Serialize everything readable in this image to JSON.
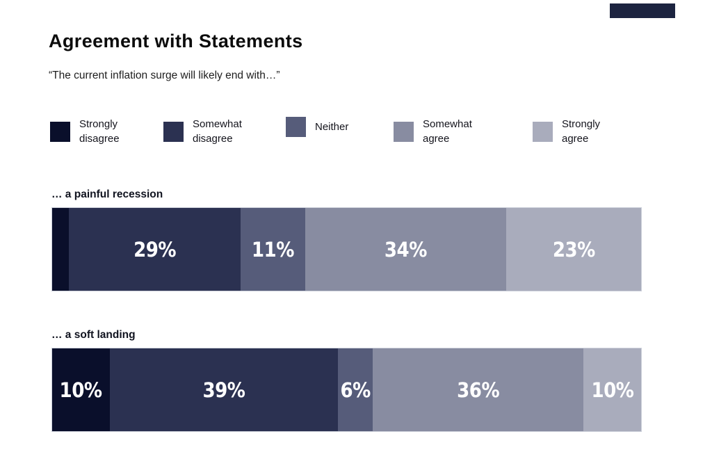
{
  "header": {
    "title": "Agreement with Statements",
    "subtitle": "“The current inflation surge will likely end with…”"
  },
  "decor": {
    "corner_block_color": "#1d2440"
  },
  "legend": [
    {
      "label": "Strongly\ndisagree",
      "color": "#0a0f2b"
    },
    {
      "label": "Somewhat\ndisagree",
      "color": "#2b3151"
    },
    {
      "label": "Neither",
      "color": "#565c7a"
    },
    {
      "label": "Somewhat\nagree",
      "color": "#888ca1"
    },
    {
      "label": "Strongly\nagree",
      "color": "#a9acbc"
    }
  ],
  "chart_data": {
    "type": "bar",
    "subtype": "horizontal-stacked-100",
    "title": "Agreement with Statements",
    "subtitle": "“The current inflation surge will likely end with…”",
    "categories": [
      "… a painful recession",
      "… a soft landing"
    ],
    "series": [
      {
        "name": "Strongly disagree",
        "color": "#0a0f2b",
        "values": [
          3,
          10
        ]
      },
      {
        "name": "Somewhat disagree",
        "color": "#2b3151",
        "values": [
          29,
          39
        ]
      },
      {
        "name": "Neither",
        "color": "#565c7a",
        "values": [
          11,
          6
        ]
      },
      {
        "name": "Somewhat agree",
        "color": "#888ca1",
        "values": [
          34,
          36
        ]
      },
      {
        "name": "Strongly agree",
        "color": "#a9acbc",
        "values": [
          23,
          10
        ]
      }
    ],
    "data_labels": [
      [
        "",
        "29%",
        "11%",
        "34%",
        "23%"
      ],
      [
        "10%",
        "39%",
        "6%",
        "36%",
        "10%"
      ]
    ],
    "xlim": [
      0,
      100
    ],
    "grid": false,
    "legend_position": "top",
    "label_color": "#ffffff"
  }
}
